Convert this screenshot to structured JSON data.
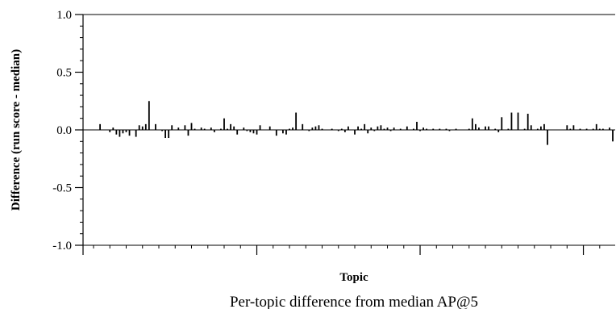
{
  "chart_data": {
    "type": "bar",
    "xlabel": "Topic",
    "ylabel": "Difference (run score - median)",
    "caption": "Per-topic difference from median AP@5",
    "ylim": [
      -1.0,
      1.0
    ],
    "yticks": [
      "1.0",
      "0.5",
      "0.0",
      "-0.5",
      "-1.0"
    ],
    "grid": false,
    "series": [
      {
        "values": [
          0.0,
          0.0,
          0.05,
          0.0,
          0.0,
          -0.02,
          0.02,
          -0.04,
          -0.06,
          -0.03,
          -0.02,
          -0.05,
          0.0,
          -0.06,
          0.04,
          0.03,
          0.05,
          0.25,
          0.0,
          0.05,
          0.0,
          -0.01,
          -0.07,
          -0.07,
          0.04,
          0.0,
          0.02,
          0.0,
          0.04,
          -0.05,
          0.06,
          0.01,
          0.0,
          0.02,
          0.01,
          0.0,
          0.02,
          -0.02,
          0.0,
          0.01,
          0.1,
          0.01,
          0.05,
          0.03,
          -0.04,
          0.0,
          0.02,
          -0.01,
          -0.02,
          -0.03,
          -0.04,
          0.04,
          0.0,
          0.0,
          0.03,
          0.0,
          -0.05,
          0.0,
          -0.03,
          -0.04,
          0.01,
          0.02,
          0.15,
          0.0,
          0.05,
          0.0,
          -0.01,
          0.02,
          0.03,
          0.04,
          0.01,
          0.0,
          0.0,
          0.01,
          0.0,
          -0.01,
          0.01,
          -0.02,
          0.03,
          0.0,
          -0.04,
          0.03,
          0.01,
          0.05,
          -0.03,
          0.02,
          -0.01,
          0.03,
          0.04,
          0.01,
          0.02,
          -0.01,
          0.02,
          0.0,
          0.01,
          0.0,
          0.03,
          0.0,
          0.01,
          0.07,
          -0.01,
          0.02,
          0.01,
          0.0,
          0.01,
          0.0,
          0.01,
          0.0,
          0.01,
          -0.01,
          0.0,
          0.01,
          0.0,
          0.0,
          0.0,
          0.01,
          0.1,
          0.05,
          0.02,
          0.0,
          0.03,
          0.03,
          0.0,
          0.01,
          -0.02,
          0.11,
          0.0,
          0.01,
          0.15,
          0.0,
          0.15,
          0.0,
          0.01,
          0.14,
          0.04,
          0.0,
          0.01,
          0.03,
          0.05,
          -0.13,
          0.0,
          0.0,
          0.0,
          0.0,
          0.0,
          0.04,
          0.01,
          0.04,
          0.0,
          0.01,
          0.0,
          0.01,
          0.0,
          0.01,
          0.05,
          0.01,
          0.01,
          0.0,
          0.02,
          -0.1
        ]
      }
    ]
  }
}
